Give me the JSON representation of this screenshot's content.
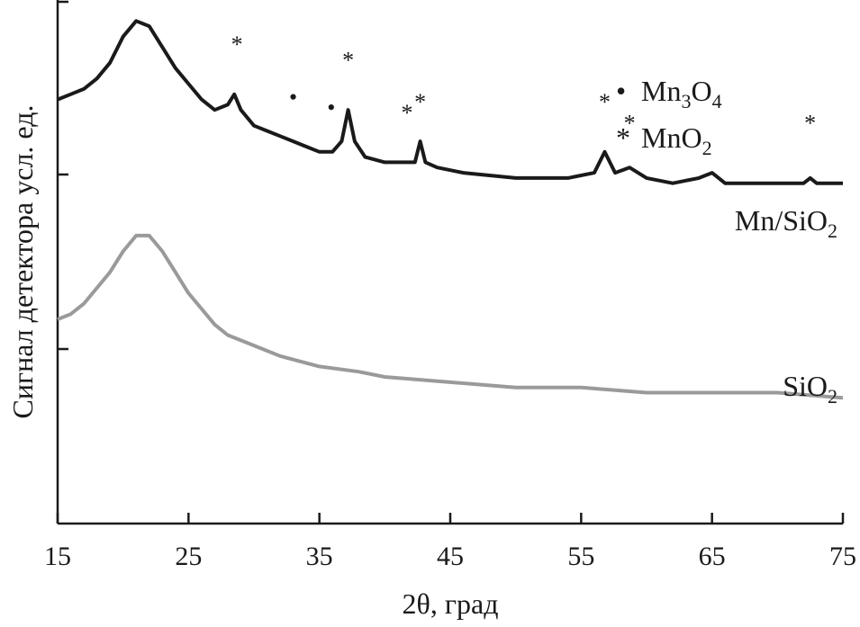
{
  "chart_data": {
    "type": "line",
    "xlabel": "2θ, град",
    "ylabel": "Сигнал детектора усл. ед.",
    "xlim": [
      15,
      75
    ],
    "ylim": [
      0,
      1
    ],
    "x_ticks": [
      15,
      25,
      35,
      45,
      55,
      65,
      75
    ],
    "x_tick_labels": [
      "15",
      "25",
      "35",
      "45",
      "55",
      "65",
      "75"
    ],
    "legend": {
      "position": "top-right",
      "entries": [
        {
          "symbol": "•",
          "label": "Mn",
          "sub1": "3",
          "label2": "O",
          "sub2": "4"
        },
        {
          "symbol": "*",
          "label": "MnO",
          "sub1": "2",
          "label2": "",
          "sub2": ""
        }
      ]
    },
    "series": [
      {
        "name": "Mn/SiO2",
        "label_main": "Mn/SiO",
        "label_sub": "2",
        "color": "#1a1a1a",
        "points": [
          [
            15,
            0.81
          ],
          [
            16,
            0.82
          ],
          [
            17,
            0.83
          ],
          [
            18,
            0.85
          ],
          [
            19,
            0.88
          ],
          [
            20,
            0.93
          ],
          [
            21,
            0.96
          ],
          [
            22,
            0.95
          ],
          [
            23,
            0.91
          ],
          [
            24,
            0.87
          ],
          [
            25,
            0.84
          ],
          [
            26,
            0.81
          ],
          [
            27,
            0.79
          ],
          [
            28,
            0.8
          ],
          [
            28.5,
            0.82
          ],
          [
            29,
            0.79
          ],
          [
            30,
            0.76
          ],
          [
            31,
            0.75
          ],
          [
            32,
            0.74
          ],
          [
            33,
            0.73
          ],
          [
            34,
            0.72
          ],
          [
            35,
            0.71
          ],
          [
            36,
            0.71
          ],
          [
            36.7,
            0.73
          ],
          [
            37.2,
            0.79
          ],
          [
            37.7,
            0.73
          ],
          [
            38.5,
            0.7
          ],
          [
            40,
            0.69
          ],
          [
            41.5,
            0.69
          ],
          [
            42.3,
            0.69
          ],
          [
            42.7,
            0.73
          ],
          [
            43.1,
            0.69
          ],
          [
            44,
            0.68
          ],
          [
            46,
            0.67
          ],
          [
            50,
            0.66
          ],
          [
            54,
            0.66
          ],
          [
            56,
            0.67
          ],
          [
            56.8,
            0.71
          ],
          [
            57.6,
            0.67
          ],
          [
            58.7,
            0.68
          ],
          [
            60,
            0.66
          ],
          [
            62,
            0.65
          ],
          [
            64,
            0.66
          ],
          [
            65,
            0.67
          ],
          [
            66,
            0.65
          ],
          [
            70,
            0.65
          ],
          [
            72,
            0.65
          ],
          [
            72.5,
            0.66
          ],
          [
            73,
            0.65
          ],
          [
            75,
            0.65
          ]
        ]
      },
      {
        "name": "SiO2",
        "label_main": "SiO",
        "label_sub": "2",
        "color": "#9a9a9a",
        "points": [
          [
            15,
            0.39
          ],
          [
            16,
            0.4
          ],
          [
            17,
            0.42
          ],
          [
            18,
            0.45
          ],
          [
            19,
            0.48
          ],
          [
            20,
            0.52
          ],
          [
            21,
            0.55
          ],
          [
            22,
            0.55
          ],
          [
            23,
            0.52
          ],
          [
            24,
            0.48
          ],
          [
            25,
            0.44
          ],
          [
            26,
            0.41
          ],
          [
            27,
            0.38
          ],
          [
            28,
            0.36
          ],
          [
            30,
            0.34
          ],
          [
            32,
            0.32
          ],
          [
            35,
            0.3
          ],
          [
            38,
            0.29
          ],
          [
            40,
            0.28
          ],
          [
            45,
            0.27
          ],
          [
            50,
            0.26
          ],
          [
            55,
            0.26
          ],
          [
            60,
            0.25
          ],
          [
            65,
            0.25
          ],
          [
            70,
            0.25
          ],
          [
            75,
            0.24
          ]
        ]
      }
    ],
    "markers": [
      {
        "symbol": "*",
        "x": 28.7,
        "y": 0.9
      },
      {
        "symbol": "•",
        "x": 33.0,
        "y": 0.8
      },
      {
        "symbol": "•",
        "x": 35.9,
        "y": 0.78
      },
      {
        "symbol": "*",
        "x": 37.2,
        "y": 0.87
      },
      {
        "symbol": "*",
        "x": 41.7,
        "y": 0.77
      },
      {
        "symbol": "*",
        "x": 42.7,
        "y": 0.79
      },
      {
        "symbol": "*",
        "x": 56.8,
        "y": 0.79
      },
      {
        "symbol": "*",
        "x": 58.7,
        "y": 0.75
      },
      {
        "symbol": "*",
        "x": 72.5,
        "y": 0.75
      }
    ]
  }
}
